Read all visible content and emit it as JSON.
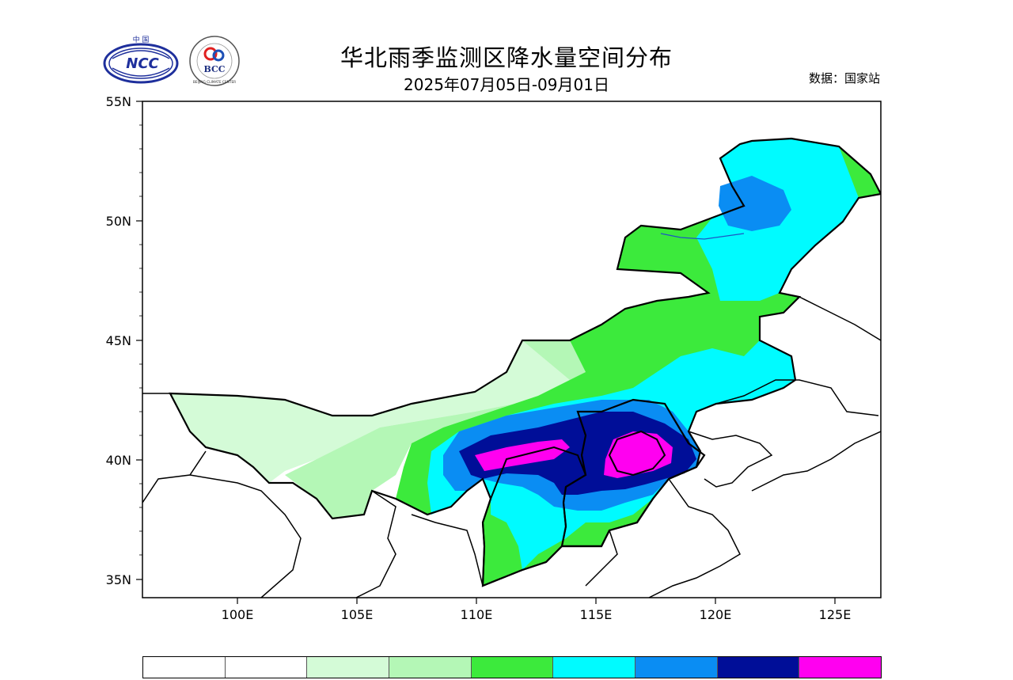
{
  "header": {
    "title": "华北雨季监测区降水量空间分布",
    "subtitle": "2025年07月05日-09月01日",
    "source": "数据：国家站"
  },
  "logos": {
    "ncc": {
      "text": "NCC",
      "top_text": "中 国"
    },
    "bcc": {
      "text": "BCC",
      "ring_text": "BEIJING CLIMATE CENTER"
    }
  },
  "map": {
    "lat_labels": [
      "55N",
      "50N",
      "45N",
      "40N",
      "35N"
    ],
    "lon_labels": [
      "100E",
      "105E",
      "110E",
      "115E",
      "120E",
      "125E"
    ],
    "fill_colors": {
      "c0": "#ffffff",
      "c1": "#d4fbd7",
      "c2": "#b4f7b6",
      "c3": "#3cea3c",
      "c4": "#00fbff",
      "c5": "#0a8df3",
      "c6": "#000e98",
      "c7": "#ff00f0"
    }
  },
  "colorbar": {
    "colors": [
      "#ffffff",
      "#ffffff",
      "#d4fbd7",
      "#b4f7b6",
      "#3cea3c",
      "#00fbff",
      "#0a8df3",
      "#000e98",
      "#ff00f0"
    ]
  }
}
